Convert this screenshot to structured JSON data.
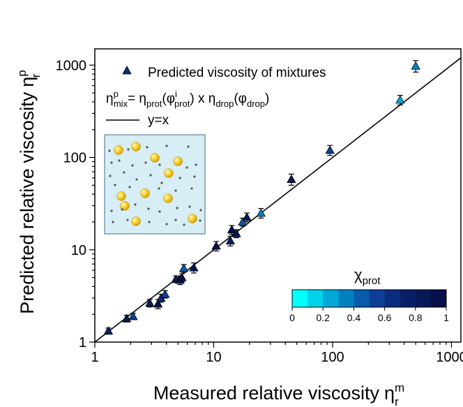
{
  "chart_data": {
    "type": "scatter",
    "xscale": "log",
    "yscale": "log",
    "xlim": [
      1,
      1200
    ],
    "ylim": [
      1,
      1500
    ],
    "xticks": [
      1,
      10,
      100,
      1000
    ],
    "yticks": [
      1,
      10,
      100,
      1000
    ],
    "xtick_labels": [
      "1",
      "10",
      "100",
      "1000"
    ],
    "ytick_labels": [
      "1",
      "10",
      "100",
      "1000"
    ],
    "xlabel": "Measured relative viscosity",
    "xlabel_symbol": "η",
    "xlabel_sub": "r",
    "xlabel_sup": "m",
    "ylabel": "Predicted relative viscosity",
    "ylabel_symbol": "η",
    "ylabel_sub": "r",
    "ylabel_sup": "p",
    "legend": {
      "marker_label": "Predicted viscosity of mixtures",
      "formula": {
        "eta": "η",
        "mix": "mix",
        "p": "p",
        "eq": "= ",
        "prot": "prot",
        "open": "(",
        "phi": "φ",
        "i": "i",
        "close": ")",
        "times": " x ",
        "drop": "drop"
      },
      "line_label": "y=x"
    },
    "reference_line": "y=x",
    "series": [
      {
        "name": "Predicted viscosity of mixtures",
        "marker": "triangle",
        "points": [
          {
            "x": 1.3,
            "y": 1.32,
            "err": 0.1,
            "c": 0.75
          },
          {
            "x": 1.85,
            "y": 1.8,
            "err": 0.15,
            "c": 0.85
          },
          {
            "x": 2.1,
            "y": 1.9,
            "err": 0.15,
            "c": 0.6
          },
          {
            "x": 2.9,
            "y": 2.65,
            "err": 0.25,
            "c": 0.8
          },
          {
            "x": 3.4,
            "y": 2.6,
            "err": 0.3,
            "c": 1.0
          },
          {
            "x": 3.6,
            "y": 3.0,
            "err": 0.3,
            "c": 0.7
          },
          {
            "x": 3.9,
            "y": 3.3,
            "err": 0.3,
            "c": 0.6
          },
          {
            "x": 4.8,
            "y": 4.8,
            "err": 0.4,
            "c": 0.85
          },
          {
            "x": 5.2,
            "y": 4.7,
            "err": 0.5,
            "c": 0.7
          },
          {
            "x": 5.4,
            "y": 5.0,
            "err": 0.5,
            "c": 0.95
          },
          {
            "x": 5.6,
            "y": 6.3,
            "err": 0.6,
            "c": 0.4
          },
          {
            "x": 6.8,
            "y": 6.4,
            "err": 0.8,
            "c": 0.85
          },
          {
            "x": 10.5,
            "y": 11.0,
            "err": 1.3,
            "c": 0.95
          },
          {
            "x": 13.8,
            "y": 12.5,
            "err": 1.5,
            "c": 0.75
          },
          {
            "x": 14.2,
            "y": 16.5,
            "err": 1.8,
            "c": 0.95
          },
          {
            "x": 15.5,
            "y": 15.0,
            "err": 1.5,
            "c": 0.85
          },
          {
            "x": 17.5,
            "y": 20.0,
            "err": 2.0,
            "c": 0.45
          },
          {
            "x": 19.0,
            "y": 22.5,
            "err": 2.5,
            "c": 0.9
          },
          {
            "x": 25.0,
            "y": 25.0,
            "err": 3.0,
            "c": 0.3
          },
          {
            "x": 45.0,
            "y": 58.0,
            "err": 8.0,
            "c": 0.85
          },
          {
            "x": 95.0,
            "y": 120.0,
            "err": 15.0,
            "c": 0.55
          },
          {
            "x": 370.0,
            "y": 420.0,
            "err": 50.0,
            "c": 0.25
          },
          {
            "x": 500.0,
            "y": 980.0,
            "err": 140.0,
            "c": 0.35
          }
        ]
      }
    ],
    "colorbar": {
      "title": "χ",
      "title_sub": "prot",
      "range": [
        0,
        1
      ],
      "ticks": [
        0,
        0.2,
        0.4,
        0.6,
        0.8,
        1
      ],
      "tick_labels": [
        "0",
        "0.2",
        "0.4",
        "0.6",
        "0.8",
        "1"
      ],
      "colors": [
        "#00ffff",
        "#00d2ea",
        "#00a9d8",
        "#0180c0",
        "#075cab",
        "#0d3f95",
        "#0b2b7c",
        "#081f66",
        "#071856",
        "#06104a"
      ]
    },
    "inset": {
      "description": "Mixture schematic",
      "background": "#d7eef7",
      "sphere_color": "#f5c518",
      "protein_color": "#555555"
    }
  }
}
